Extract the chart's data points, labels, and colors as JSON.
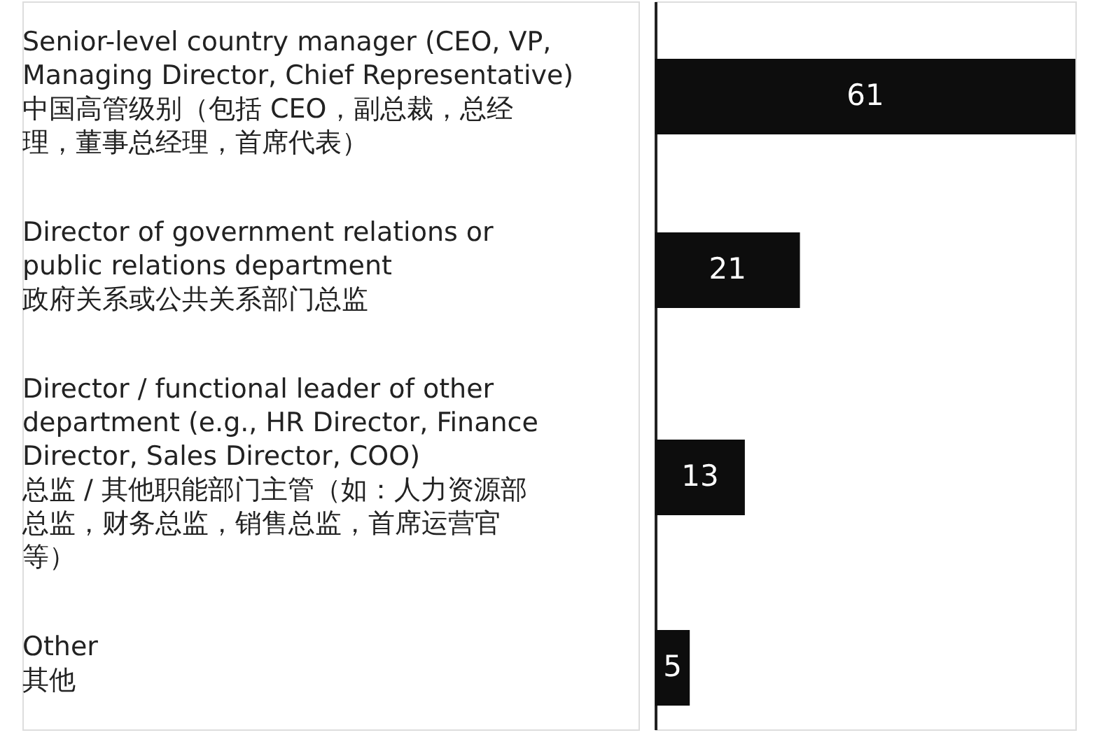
{
  "chart_data": {
    "type": "bar",
    "orientation": "horizontal",
    "categories": [
      "Senior-level country manager (CEO, VP,\nManaging Director, Chief Representative)\n中国高管级别（包括 CEO，副总裁，总经理，董事总经理，首席代表）",
      "Director of government relations or\npublic relations department\n政府关系或公共关系部门总监",
      "Director / functional leader of other\ndepartment (e.g., HR Director, Finance\nDirector, Sales Director, COO)\n总监 / 其他职能部门主管（如：人力资源部总监，财务总监，销售总监，首席运营官等）",
      "Other\n其他"
    ],
    "values": [
      61,
      21,
      13,
      5
    ],
    "color": "#0d0d0d",
    "data_labels": true
  }
}
